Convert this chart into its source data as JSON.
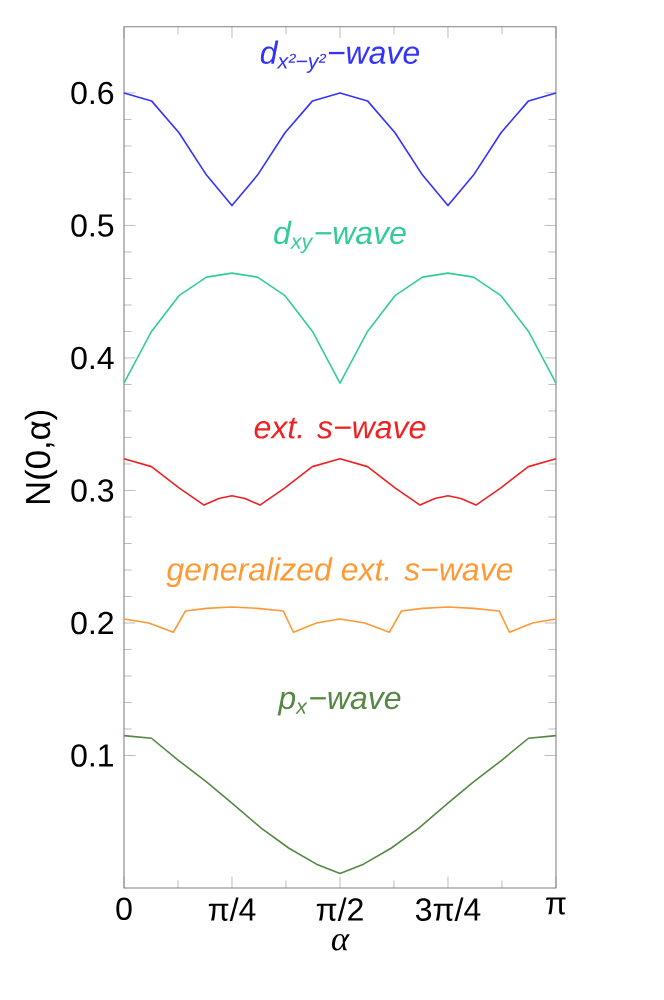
{
  "chart_data": {
    "type": "line",
    "xlabel": "α",
    "ylabel": "N(0,α)",
    "xlim": [
      0,
      3.1416
    ],
    "ylim": [
      0,
      0.65
    ],
    "xticks": [
      0,
      {
        "value": 0.7854,
        "label": "π/4"
      },
      {
        "value": 1.5708,
        "label": "π/2"
      },
      {
        "value": 2.3562,
        "label": "3π/4"
      },
      {
        "value": 3.1416,
        "label": "π"
      }
    ],
    "yticks": [
      0.1,
      0.2,
      0.3,
      0.4,
      0.5,
      0.6
    ],
    "grid": false,
    "series": [
      {
        "name": "d$_{x²−y²}$−wave",
        "color": "#3333ff",
        "x": [
          0,
          0.2,
          0.4,
          0.6,
          0.785,
          0.971,
          1.171,
          1.371,
          1.571,
          1.771,
          1.971,
          2.171,
          2.356,
          2.542,
          2.742,
          2.942,
          3.1416
        ],
        "values": [
          0.6,
          0.594,
          0.57,
          0.538,
          0.515,
          0.538,
          0.57,
          0.594,
          0.6,
          0.594,
          0.57,
          0.538,
          0.515,
          0.538,
          0.57,
          0.594,
          0.6
        ]
      },
      {
        "name": "d$_{xy}$−wave",
        "color": "#33cc99",
        "x": [
          0,
          0.2,
          0.4,
          0.6,
          0.785,
          0.971,
          1.171,
          1.371,
          1.571,
          1.771,
          1.971,
          2.171,
          2.356,
          2.542,
          2.742,
          2.942,
          3.1416
        ],
        "values": [
          0.381,
          0.42,
          0.447,
          0.461,
          0.464,
          0.461,
          0.447,
          0.42,
          0.381,
          0.42,
          0.447,
          0.461,
          0.464,
          0.461,
          0.447,
          0.42,
          0.381
        ]
      },
      {
        "name": "ext. s−wave",
        "color": "#ee2222",
        "x": [
          0,
          0.2,
          0.4,
          0.582,
          0.69,
          0.785,
          0.88,
          0.989,
          1.17,
          1.37,
          1.571,
          1.771,
          1.971,
          2.153,
          2.261,
          2.356,
          2.451,
          2.56,
          2.741,
          2.941,
          3.1416
        ],
        "values": [
          0.324,
          0.318,
          0.302,
          0.289,
          0.294,
          0.296,
          0.294,
          0.289,
          0.302,
          0.318,
          0.324,
          0.318,
          0.302,
          0.289,
          0.294,
          0.296,
          0.294,
          0.289,
          0.302,
          0.318,
          0.324
        ]
      },
      {
        "name": "generalized   ext. s−wave",
        "color": "#ff9933",
        "x": [
          0,
          0.18,
          0.359,
          0.446,
          0.6,
          0.785,
          0.97,
          1.159,
          1.232,
          1.4,
          1.571,
          1.751,
          1.93,
          2.017,
          2.171,
          2.356,
          2.541,
          2.73,
          2.803,
          2.971,
          3.1416
        ],
        "values": [
          0.203,
          0.2,
          0.193,
          0.209,
          0.211,
          0.212,
          0.211,
          0.209,
          0.193,
          0.2,
          0.203,
          0.2,
          0.193,
          0.209,
          0.211,
          0.212,
          0.211,
          0.209,
          0.193,
          0.2,
          0.203
        ]
      },
      {
        "name": "p$_{x}$−wave",
        "color": "#558844",
        "x": [
          0,
          0.2,
          0.4,
          0.6,
          0.785,
          1.0,
          1.2,
          1.4,
          1.571,
          1.742,
          1.942,
          2.142,
          2.356,
          2.542,
          2.742,
          2.942,
          3.1416
        ],
        "values": [
          0.115,
          0.113,
          0.096,
          0.08,
          0.064,
          0.045,
          0.03,
          0.018,
          0.011,
          0.018,
          0.03,
          0.045,
          0.064,
          0.08,
          0.096,
          0.113,
          0.115
        ]
      }
    ]
  }
}
